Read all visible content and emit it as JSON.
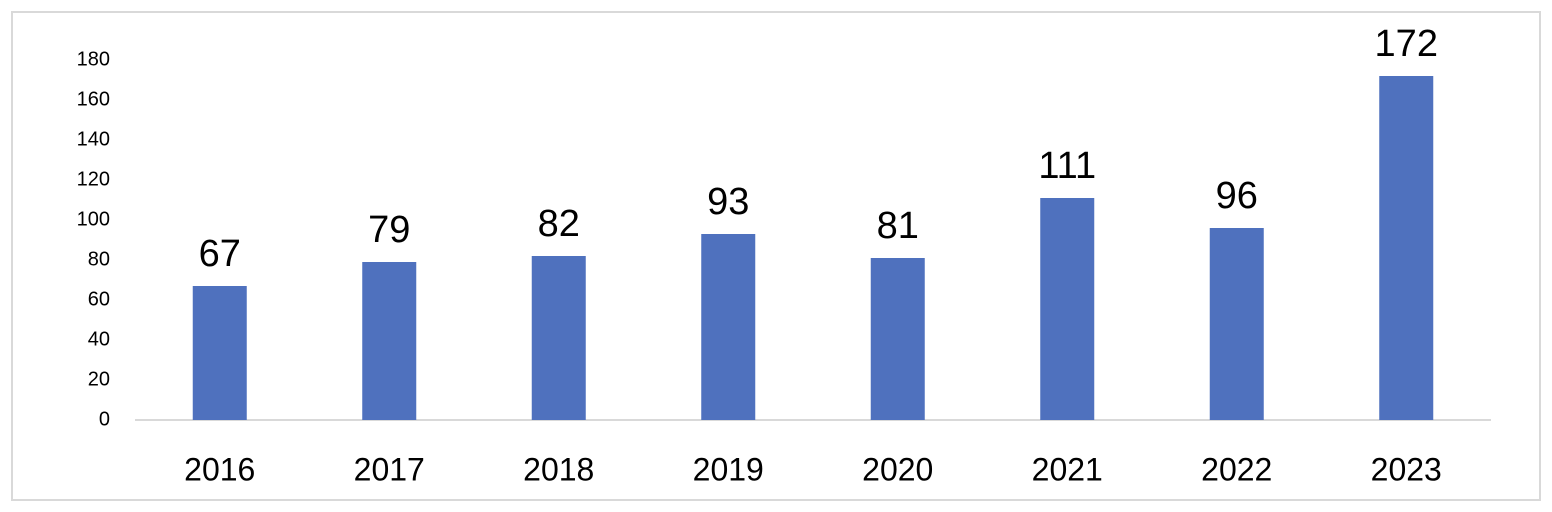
{
  "chart_data": {
    "type": "bar",
    "categories": [
      "2016",
      "2017",
      "2018",
      "2019",
      "2020",
      "2021",
      "2022",
      "2023"
    ],
    "values": [
      67,
      79,
      82,
      93,
      81,
      111,
      96,
      172
    ],
    "color": "#4f71be",
    "ylim": [
      0,
      180
    ],
    "yticks": [
      0,
      20,
      40,
      60,
      80,
      100,
      120,
      140,
      160,
      180
    ],
    "grid": false
  }
}
